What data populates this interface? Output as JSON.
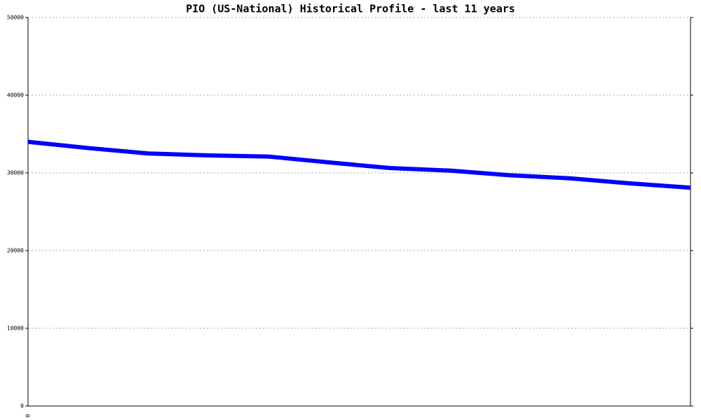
{
  "chart_data": {
    "type": "line",
    "title": "PIO (US-National) Historical Profile - last 11 years",
    "categories": [
      "0",
      null,
      null,
      null,
      null,
      null,
      null,
      null,
      null,
      null,
      null,
      null
    ],
    "series": [
      {
        "name": "PIO",
        "color": "#0000ff",
        "values": [
          34000,
          33200,
          32500,
          32250,
          32100,
          31350,
          30630,
          30300,
          29700,
          29300,
          28650,
          28100
        ]
      }
    ],
    "ylim": [
      0,
      50000
    ],
    "yticks": [
      0,
      10000,
      20000,
      30000,
      40000,
      50000
    ],
    "grid": true
  }
}
